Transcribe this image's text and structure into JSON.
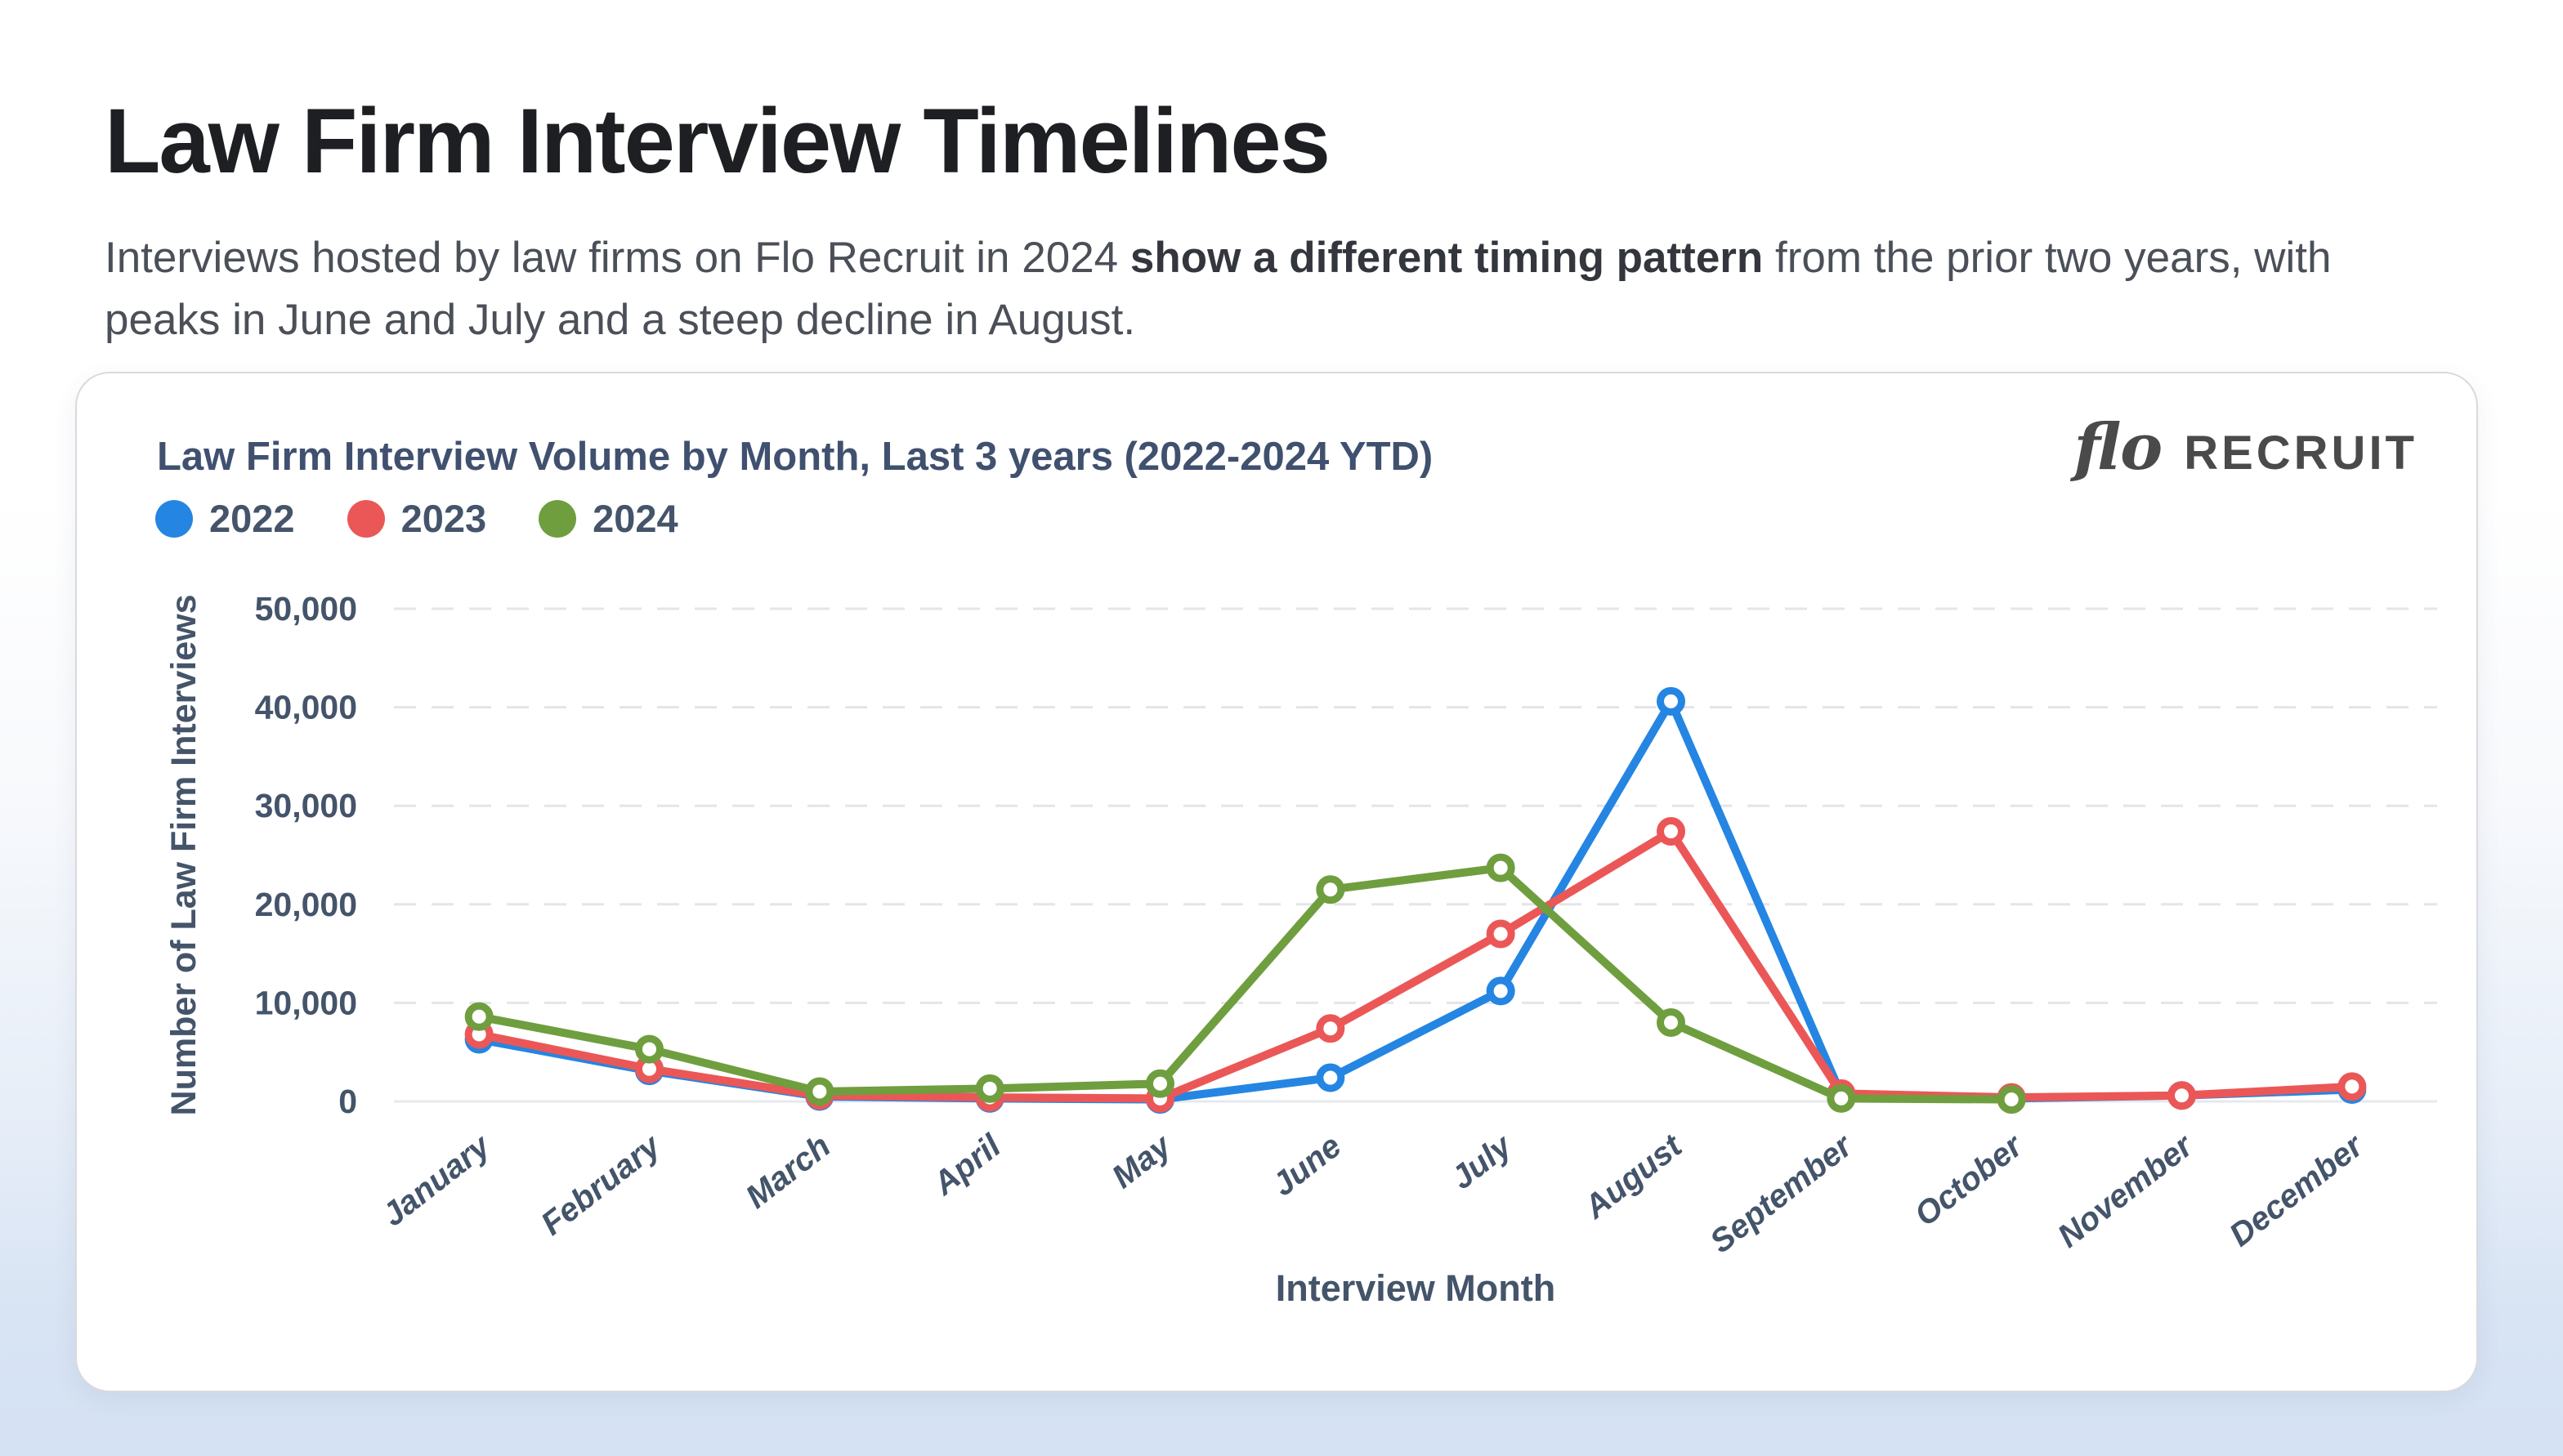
{
  "header": {
    "title": "Law Firm Interview Timelines",
    "subtitle_part1": "Interviews hosted by law firms on Flo Recruit in 2024 ",
    "subtitle_bold": "show a different timing pattern",
    "subtitle_part2": " from the prior two years, with peaks in June and July and a steep decline in August."
  },
  "logo": {
    "script": "flo",
    "wordmark": "RECRUIT"
  },
  "palette": {
    "heading_text": "#1d1f23",
    "body_text": "#4b5058",
    "chart_text": "#44546a",
    "chart_title_text": "#40506f",
    "logo_text": "#4a4a4a",
    "gridline": "#e4e5e8",
    "zero_line": "#e7e8ec",
    "card_background": "#ffffff",
    "page_bottom_background": "#d5e2f3",
    "series_2022": "#2585e2",
    "series_2023": "#eb5757",
    "series_2024": "#6f9e3f"
  },
  "chart_data": {
    "type": "line",
    "title": "Law Firm Interview Volume by Month, Last 3 years (2022-2024 YTD)",
    "xlabel": "Interview Month",
    "ylabel": "Number of Law Firm Interviews",
    "ylim": [
      0,
      50000
    ],
    "ytick_step": 10000,
    "ytick_labels": [
      "0",
      "10,000",
      "20,000",
      "30,000",
      "40,000",
      "50,000"
    ],
    "grid": "dashed horizontal",
    "legend_position": "top-left",
    "categories": [
      "January",
      "February",
      "March",
      "April",
      "May",
      "June",
      "July",
      "August",
      "September",
      "October",
      "November",
      "December"
    ],
    "series": [
      {
        "name": "2022",
        "color": "#2585e2",
        "values": [
          6300,
          3100,
          500,
          300,
          200,
          2400,
          11200,
          40600,
          700,
          300,
          600,
          1200
        ]
      },
      {
        "name": "2023",
        "color": "#eb5757",
        "values": [
          6800,
          3300,
          600,
          400,
          300,
          7400,
          17000,
          27400,
          800,
          400,
          600,
          1500
        ]
      },
      {
        "name": "2024",
        "color": "#6f9e3f",
        "values": [
          8600,
          5300,
          1000,
          1300,
          1800,
          21500,
          23700,
          8000,
          300,
          200,
          null,
          null
        ]
      }
    ]
  }
}
